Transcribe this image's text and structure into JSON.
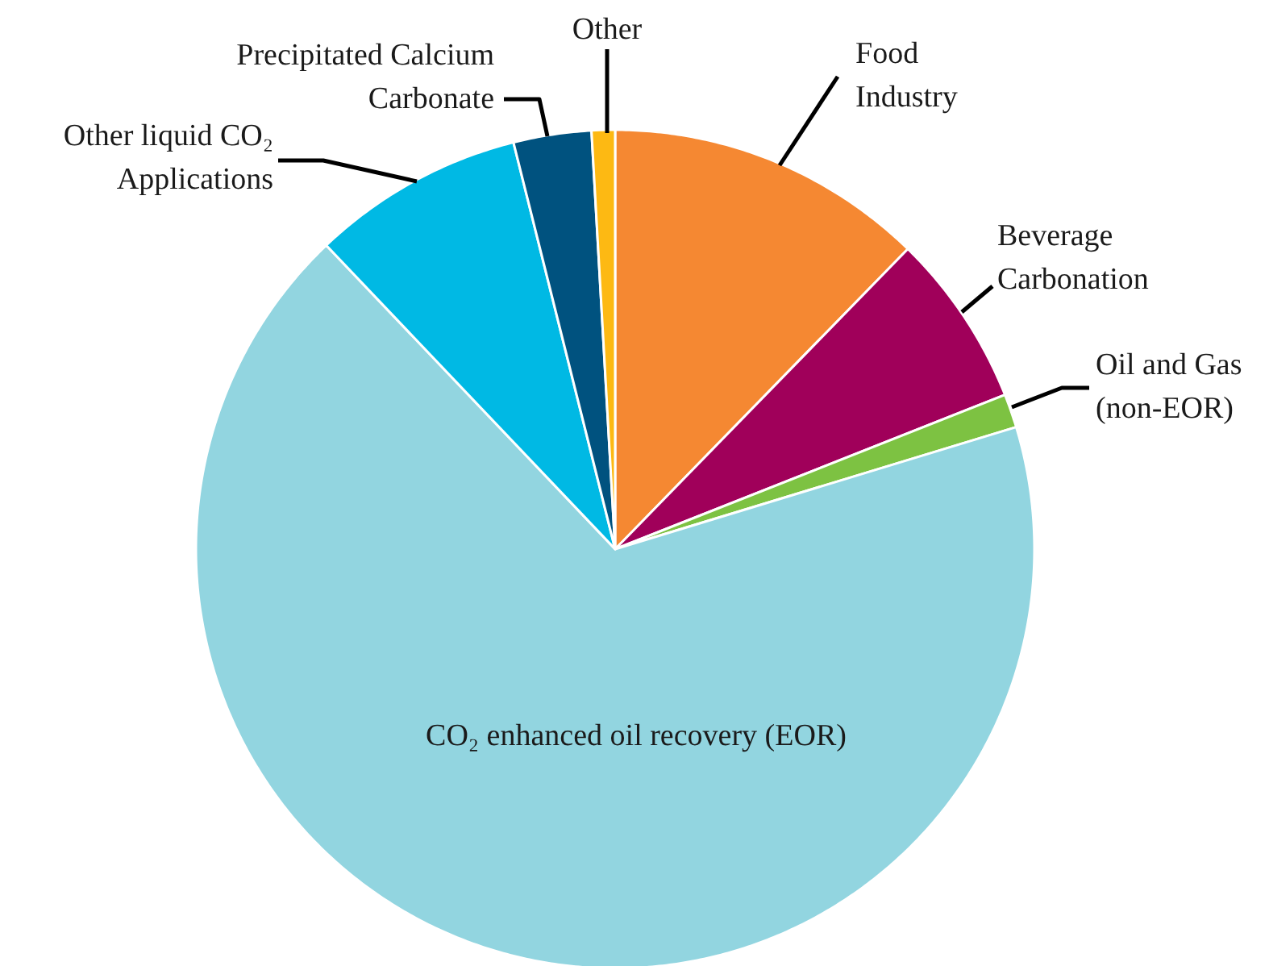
{
  "chart_data": {
    "type": "pie",
    "categories": [
      "Food Industry",
      "Beverage Carbonation",
      "Oil and Gas (non-EOR)",
      "CO₂ enhanced oil recovery (EOR)",
      "Other liquid CO₂ Applications",
      "Precipitated Calcium Carbonate",
      "Other"
    ],
    "values": [
      12.3,
      6.7,
      1.3,
      67.6,
      8.2,
      3.0,
      0.9
    ],
    "colors": [
      "#f58832",
      "#a0005a",
      "#7dc242",
      "#92d5e0",
      "#00b9e4",
      "#00527f",
      "#fdb913"
    ],
    "legend": false
  }
}
